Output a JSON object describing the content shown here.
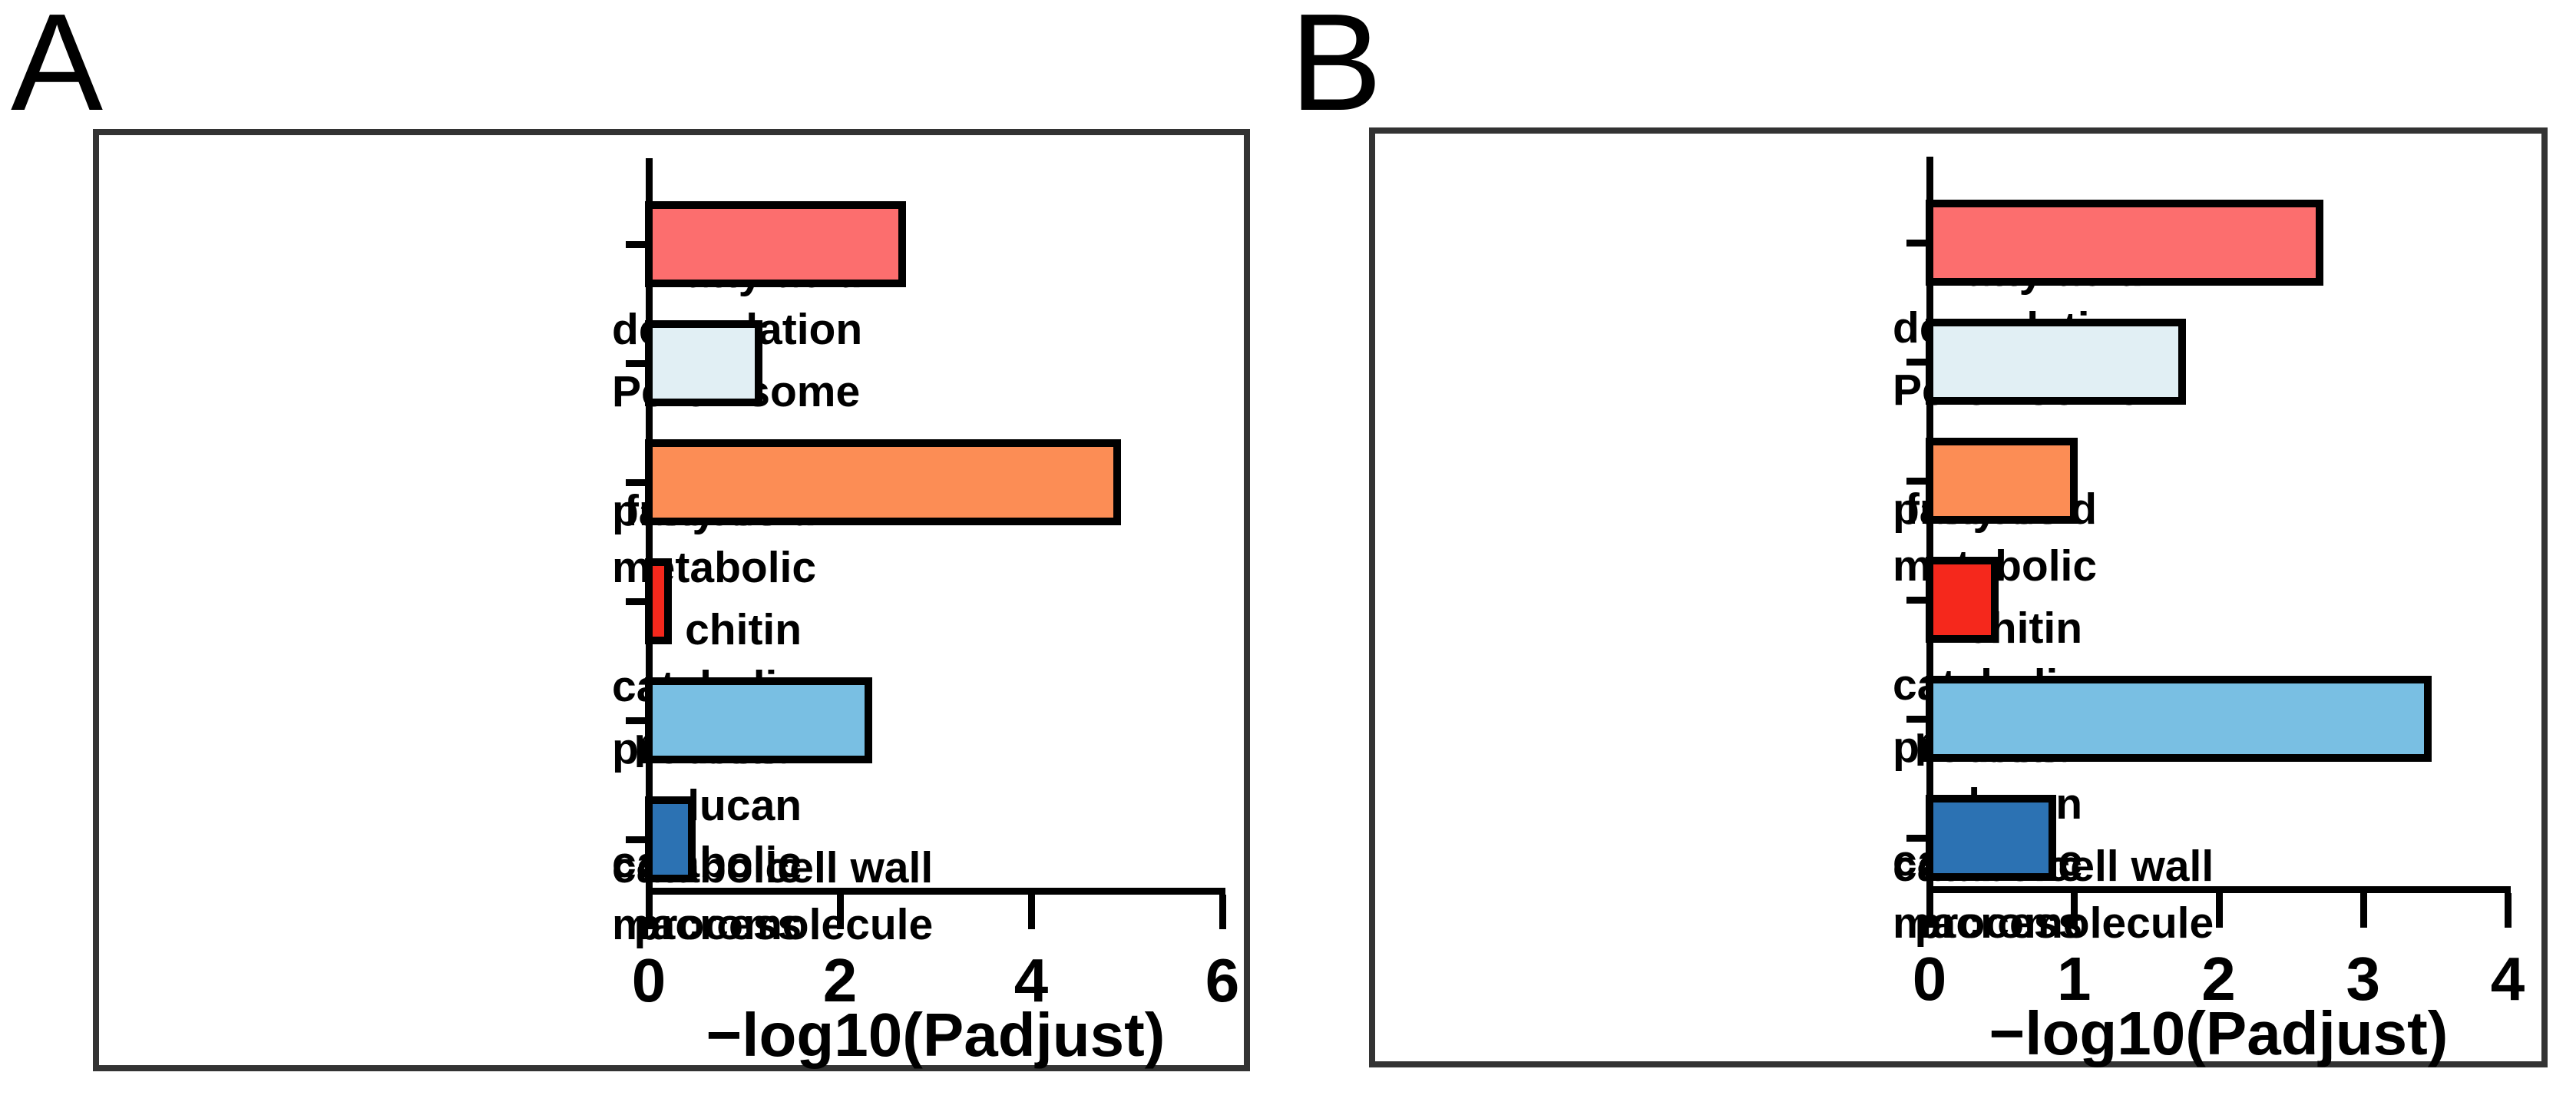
{
  "chart_data": [
    {
      "type": "bar",
      "panel": "A",
      "orientation": "horizontal",
      "xlabel": "−log10(Padjust)",
      "xlim": [
        0,
        6
      ],
      "xticks": [
        "0",
        "2",
        "4",
        "6"
      ],
      "grid": false,
      "legend": null,
      "categories": [
        "Fatty acid degradation",
        "Peroxisome",
        "fatty acid metabolic process",
        "chitin catabolic process",
        "beta-glucan catabolic process",
        "cell wall macromolecule catabolic process"
      ],
      "category_label_lines": [
        [
          "Fatty acid degradation"
        ],
        [
          "Peroxisome"
        ],
        [
          "fatty acid metabolic",
          "process"
        ],
        [
          "chitin catabolic process"
        ],
        [
          "beta-glucan catabolic",
          "process"
        ],
        [
          "cell wall macromolecule",
          "catabolic process"
        ]
      ],
      "values": [
        2.65,
        1.15,
        4.9,
        0.2,
        2.3,
        0.45
      ],
      "bar_colors": [
        "#fc6e6e",
        "#e1eff4",
        "#fc8d55",
        "#f5281c",
        "#79bfe3",
        "#2c72b3"
      ],
      "bar_outline_color": "#000000"
    },
    {
      "type": "bar",
      "panel": "B",
      "orientation": "horizontal",
      "xlabel": "−log10(Padjust)",
      "xlim": [
        0,
        4
      ],
      "xticks": [
        "0",
        "1",
        "2",
        "3",
        "4"
      ],
      "grid": false,
      "legend": null,
      "categories": [
        "Fatty acid degradation",
        "Peroxisome",
        "fatty acid metabolic process",
        "chitin catabolic process",
        "beta-glucan catabolic process",
        "cell wall macromolecule catabolic process"
      ],
      "category_label_lines": [
        [
          "Fatty acid degradation"
        ],
        [
          "Peroxisome"
        ],
        [
          "fatty acid metabolic",
          "process"
        ],
        [
          "chitin catabolic process"
        ],
        [
          "beta-glucan catabolic",
          "process"
        ],
        [
          "cell wall macromolecule",
          "catabolic process"
        ]
      ],
      "values": [
        2.7,
        1.75,
        1.0,
        0.45,
        3.45,
        0.85
      ],
      "bar_colors": [
        "#fc6e6e",
        "#e1eff4",
        "#fc8d55",
        "#f5281c",
        "#79bfe3",
        "#2c72b3"
      ],
      "bar_outline_color": "#000000"
    }
  ],
  "colors": {
    "frame_border": "#333333",
    "axis": "#000000",
    "text": "#000000",
    "background": "#ffffff"
  }
}
